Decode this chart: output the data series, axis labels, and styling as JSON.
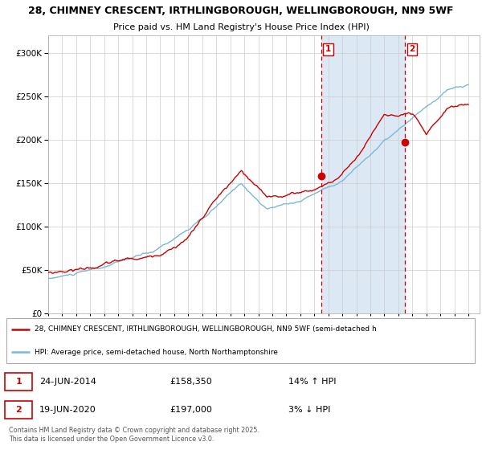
{
  "title_line1": "28, CHIMNEY CRESCENT, IRTHLINGBOROUGH, WELLINGBOROUGH, NN9 5WF",
  "title_line2": "Price paid vs. HM Land Registry's House Price Index (HPI)",
  "legend_line1": "28, CHIMNEY CRESCENT, IRTHLINGBOROUGH, WELLINGBOROUGH, NN9 5WF (semi-detached h",
  "legend_line2": "HPI: Average price, semi-detached house, North Northamptonshire",
  "annotation1_label": "1",
  "annotation1_date": "24-JUN-2014",
  "annotation1_price": "£158,350",
  "annotation1_hpi": "14% ↑ HPI",
  "annotation2_label": "2",
  "annotation2_date": "19-JUN-2020",
  "annotation2_price": "£197,000",
  "annotation2_hpi": "3% ↓ HPI",
  "footer": "Contains HM Land Registry data © Crown copyright and database right 2025.\nThis data is licensed under the Open Government Licence v3.0.",
  "red_color": "#cc0000",
  "blue_color": "#7ab8d9",
  "shade_color": "#dce9f5",
  "vline_color": "#cc0000",
  "background_color": "#ffffff",
  "grid_color": "#cccccc",
  "ylim": [
    0,
    320000
  ],
  "yticks": [
    0,
    50000,
    100000,
    150000,
    200000,
    250000,
    300000
  ],
  "xlim_start": 1995.0,
  "xlim_end": 2025.8,
  "vline1_x": 2014.48,
  "vline2_x": 2020.47,
  "point1_x": 2014.48,
  "point1_y": 158350,
  "point2_x": 2020.47,
  "point2_y": 197000,
  "hpi_profile_x": [
    0.0,
    0.12,
    0.25,
    0.38,
    0.46,
    0.52,
    0.6,
    0.7,
    0.8,
    0.87,
    0.95,
    1.0
  ],
  "hpi_profile_y": [
    40000,
    50000,
    68000,
    110000,
    145000,
    115000,
    125000,
    150000,
    195000,
    220000,
    250000,
    255000
  ],
  "red_profile_x": [
    0.0,
    0.08,
    0.17,
    0.25,
    0.33,
    0.4,
    0.46,
    0.52,
    0.58,
    0.63,
    0.7,
    0.75,
    0.8,
    0.87,
    0.9,
    0.95,
    1.0
  ],
  "red_profile_y": [
    47000,
    53000,
    62000,
    65000,
    90000,
    135000,
    163000,
    130000,
    135000,
    140000,
    158350,
    190000,
    230000,
    225000,
    197000,
    228000,
    232000
  ]
}
